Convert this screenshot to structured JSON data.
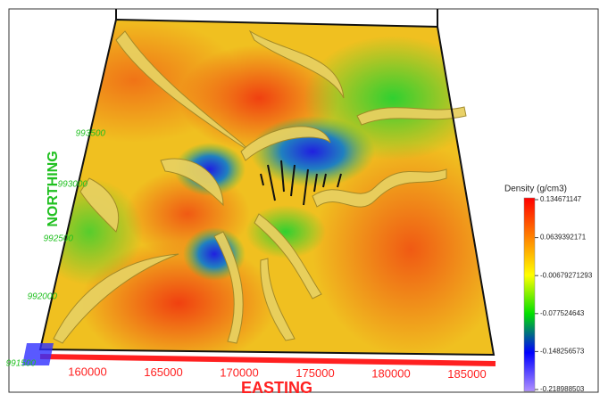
{
  "axes": {
    "easting": {
      "label": "EASTING",
      "ticks": [
        160000,
        165000,
        170000,
        175000,
        180000,
        185000
      ]
    },
    "northing": {
      "label": "NORTHING",
      "ticks": [
        993500,
        993000,
        992500,
        992000,
        991500
      ]
    }
  },
  "colorbar": {
    "title": "Density (g/cm3)",
    "ticks": [
      0.134671147,
      0.0639392171,
      -0.00679271293,
      -0.077524643,
      -0.148256573,
      -0.218988503
    ]
  }
}
